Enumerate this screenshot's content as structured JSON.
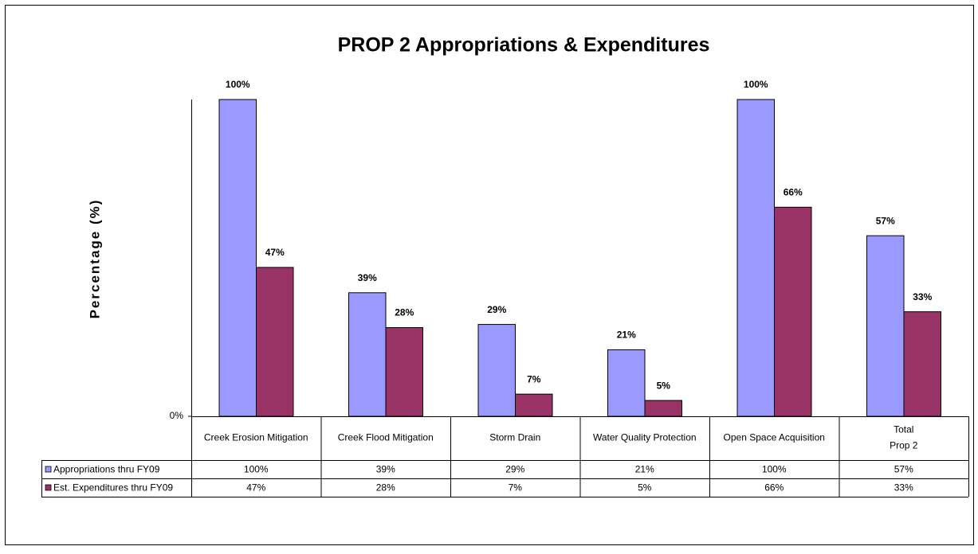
{
  "chart_data": {
    "type": "bar",
    "title": "PROP 2 Appropriations & Expenditures",
    "y_label": "Percentage (%)",
    "categories": [
      "Creek Erosion Mitigation",
      "Creek Flood Mitigation",
      "Storm Drain",
      "Water Quality Protection",
      "Open Space Acquisition",
      "Total\nProp 2"
    ],
    "series": [
      {
        "name": "Appropriations thru FY09",
        "color": "#9999ff",
        "values": [
          100,
          39,
          29,
          21,
          100,
          57
        ],
        "value_labels": [
          "100%",
          "39%",
          "29%",
          "21%",
          "100%",
          "57%"
        ]
      },
      {
        "name": "Est. Expenditures thru FY09",
        "color": "#993366",
        "values": [
          47,
          28,
          7,
          5,
          66,
          33
        ],
        "value_labels": [
          "47%",
          "28%",
          "7%",
          "5%",
          "66%",
          "33%"
        ]
      }
    ],
    "ylim": [
      0,
      100
    ],
    "yticks": [
      {
        "value": 0,
        "label": "0%"
      }
    ],
    "data_table": true
  }
}
